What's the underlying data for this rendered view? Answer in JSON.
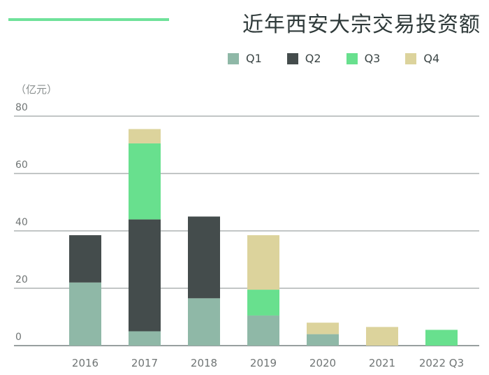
{
  "title": "近年西安大宗交易投资额",
  "unit_label": "（亿元）",
  "colors": {
    "accent": "#6fe29a",
    "Q1": "#8fb8a7",
    "Q2": "#444c4c",
    "Q3": "#68e08e",
    "Q4": "#dcd39c",
    "grid": "#5b6666",
    "axis_text": "#707575"
  },
  "chart_data": {
    "type": "bar",
    "stacked": true,
    "title": "近年西安大宗交易投资额",
    "ylabel": "（亿元）",
    "xlabel": "",
    "categories": [
      "2016",
      "2017",
      "2018",
      "2019",
      "2020",
      "2021",
      "2022 Q3"
    ],
    "series": [
      {
        "name": "Q1",
        "values": [
          22,
          5,
          16.5,
          10.5,
          4,
          0,
          0
        ]
      },
      {
        "name": "Q2",
        "values": [
          16.5,
          39,
          28.5,
          0,
          0,
          0,
          0
        ]
      },
      {
        "name": "Q3",
        "values": [
          0,
          26.5,
          0,
          9,
          0,
          0,
          5.5
        ]
      },
      {
        "name": "Q4",
        "values": [
          0,
          5,
          0,
          19,
          4,
          6.5,
          0
        ]
      }
    ],
    "ylim": [
      0,
      80
    ],
    "yticks": [
      0,
      20,
      40,
      60,
      80
    ],
    "grid": true,
    "legend": "top-right"
  }
}
